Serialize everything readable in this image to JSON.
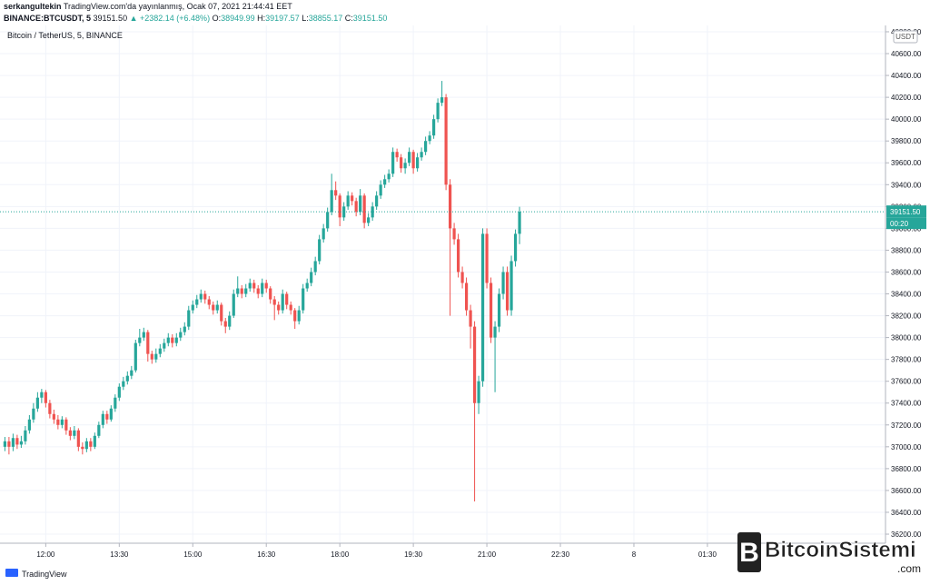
{
  "header": {
    "author": "serkangultekin",
    "published": "TradingView.com'da yayınlanmış, Ocak 07, 2021 21:44:41 EET",
    "symbol": "BINANCE:BTCUSDT, 5",
    "last": "39151.50",
    "change": "▲ +2382.14 (+6.48%)",
    "ohlc": [
      {
        "label": "O:",
        "value": "38949.99"
      },
      {
        "label": "H:",
        "value": "39197.57"
      },
      {
        "label": "L:",
        "value": "38855.17"
      },
      {
        "label": "C:",
        "value": "39151.50"
      }
    ]
  },
  "branding": {
    "logo": "TradingView",
    "watermark": "BitcoinSistemi",
    "watermark_suffix": ".com"
  },
  "chart_data": {
    "type": "candlestick",
    "legend_title": "Bitcoin / TetherUS, 5, BINANCE",
    "axis_unit": "USDT",
    "up_color": "#26a69a",
    "down_color": "#ef5350",
    "grid": true,
    "last_price": {
      "value": 39151.5,
      "label": "39151.50"
    },
    "countdown": "00:20",
    "xlim": [
      664,
      1748
    ],
    "xticks": [
      {
        "value": 720,
        "label": "12:00"
      },
      {
        "value": 810,
        "label": "13:30"
      },
      {
        "value": 900,
        "label": "15:00"
      },
      {
        "value": 990,
        "label": "16:30"
      },
      {
        "value": 1080,
        "label": "18:00"
      },
      {
        "value": 1170,
        "label": "19:30"
      },
      {
        "value": 1260,
        "label": "21:00"
      },
      {
        "value": 1350,
        "label": "22:30"
      },
      {
        "value": 1440,
        "label": "8"
      },
      {
        "value": 1530,
        "label": "01:30"
      }
    ],
    "ylim": [
      36117,
      40858
    ],
    "yticks": [
      {
        "value": 36200,
        "label": "36200.00"
      },
      {
        "value": 36400,
        "label": "36400.00"
      },
      {
        "value": 36600,
        "label": "36600.00"
      },
      {
        "value": 36800,
        "label": "36800.00"
      },
      {
        "value": 37000,
        "label": "37000.00"
      },
      {
        "value": 37200,
        "label": "37200.00"
      },
      {
        "value": 37400,
        "label": "37400.00"
      },
      {
        "value": 37600,
        "label": "37600.00"
      },
      {
        "value": 37800,
        "label": "37800.00"
      },
      {
        "value": 38000,
        "label": "38000.00"
      },
      {
        "value": 38200,
        "label": "38200.00"
      },
      {
        "value": 38400,
        "label": "38400.00"
      },
      {
        "value": 38600,
        "label": "38600.00"
      },
      {
        "value": 38800,
        "label": "38800.00"
      },
      {
        "value": 39000,
        "label": "39000.00"
      },
      {
        "value": 39200,
        "label": "39200.00"
      },
      {
        "value": 39400,
        "label": "39400.00"
      },
      {
        "value": 39600,
        "label": "39600.00"
      },
      {
        "value": 39800,
        "label": "39800.00"
      },
      {
        "value": 40000,
        "label": "40000.00"
      },
      {
        "value": 40200,
        "label": "40200.00"
      },
      {
        "value": 40400,
        "label": "40400.00"
      },
      {
        "value": 40600,
        "label": "40600.00"
      },
      {
        "value": 40800,
        "label": "40800.00"
      }
    ],
    "x": [
      "11:10",
      "11:15",
      "11:20",
      "11:25",
      "11:30",
      "11:35",
      "11:40",
      "11:45",
      "11:50",
      "11:55",
      "12:00",
      "12:05",
      "12:10",
      "12:15",
      "12:20",
      "12:25",
      "12:30",
      "12:35",
      "12:40",
      "12:45",
      "12:50",
      "12:55",
      "13:00",
      "13:05",
      "13:10",
      "13:15",
      "13:20",
      "13:25",
      "13:30",
      "13:35",
      "13:40",
      "13:45",
      "13:50",
      "13:55",
      "14:00",
      "14:05",
      "14:10",
      "14:15",
      "14:20",
      "14:25",
      "14:30",
      "14:35",
      "14:40",
      "14:45",
      "14:50",
      "14:55",
      "15:00",
      "15:05",
      "15:10",
      "15:15",
      "15:20",
      "15:25",
      "15:30",
      "15:35",
      "15:40",
      "15:45",
      "15:50",
      "15:55",
      "16:00",
      "16:05",
      "16:10",
      "16:15",
      "16:20",
      "16:25",
      "16:30",
      "16:35",
      "16:40",
      "16:45",
      "16:50",
      "16:55",
      "17:00",
      "17:05",
      "17:10",
      "17:15",
      "17:20",
      "17:25",
      "17:30",
      "17:35",
      "17:40",
      "17:45",
      "17:50",
      "17:55",
      "18:00",
      "18:05",
      "18:10",
      "18:15",
      "18:20",
      "18:25",
      "18:30",
      "18:35",
      "18:40",
      "18:45",
      "18:50",
      "18:55",
      "19:00",
      "19:05",
      "19:10",
      "19:15",
      "19:20",
      "19:25",
      "19:30",
      "19:35",
      "19:40",
      "19:45",
      "19:50",
      "19:55",
      "20:00",
      "20:05",
      "20:10",
      "20:15",
      "20:20",
      "20:25",
      "20:30",
      "20:35",
      "20:40",
      "20:45",
      "20:50",
      "20:55",
      "21:00",
      "21:05",
      "21:10",
      "21:15",
      "21:20",
      "21:25",
      "21:30",
      "21:35",
      "21:40"
    ],
    "open": [
      37000,
      37050,
      37000,
      37080,
      37020,
      37050,
      37150,
      37250,
      37350,
      37450,
      37500,
      37400,
      37300,
      37250,
      37200,
      37250,
      37150,
      37100,
      37150,
      37000,
      36980,
      37050,
      37000,
      37100,
      37200,
      37300,
      37250,
      37350,
      37450,
      37550,
      37600,
      37650,
      37700,
      37950,
      38000,
      38050,
      37850,
      37800,
      37850,
      37900,
      37950,
      38000,
      37950,
      38000,
      38050,
      38100,
      38250,
      38300,
      38350,
      38400,
      38350,
      38300,
      38250,
      38300,
      38150,
      38100,
      38200,
      38400,
      38450,
      38400,
      38450,
      38500,
      38450,
      38400,
      38500,
      38450,
      38350,
      38300,
      38250,
      38400,
      38300,
      38250,
      38150,
      38250,
      38450,
      38500,
      38600,
      38700,
      38900,
      39000,
      39150,
      39350,
      39300,
      39100,
      39200,
      39300,
      39250,
      39150,
      39300,
      39050,
      39100,
      39200,
      39300,
      39400,
      39450,
      39500,
      39700,
      39650,
      39550,
      39600,
      39700,
      39550,
      39650,
      39700,
      39800,
      39850,
      40000,
      40150,
      40200,
      39400,
      39000,
      38900,
      38600,
      38500,
      38250,
      38100,
      37400,
      37600,
      38950,
      38500,
      38000,
      38100,
      38400,
      38600,
      38250,
      38700,
      38949.99
    ],
    "high": [
      37090,
      37090,
      37120,
      37110,
      37100,
      37190,
      37290,
      37400,
      37500,
      37530,
      37520,
      37430,
      37340,
      37290,
      37280,
      37270,
      37180,
      37190,
      37170,
      37040,
      37080,
      37080,
      37130,
      37230,
      37330,
      37330,
      37380,
      37480,
      37580,
      37640,
      37690,
      37740,
      37980,
      38080,
      38090,
      38070,
      37880,
      37900,
      37940,
      37990,
      38040,
      38030,
      38040,
      38090,
      38140,
      38290,
      38340,
      38390,
      38440,
      38430,
      38380,
      38330,
      38340,
      38320,
      38180,
      38240,
      38440,
      38560,
      38480,
      38490,
      38540,
      38530,
      38480,
      38540,
      38530,
      38470,
      38380,
      38330,
      38440,
      38420,
      38330,
      38270,
      38290,
      38490,
      38540,
      38640,
      38740,
      38940,
      39040,
      39190,
      39500,
      39430,
      39320,
      39240,
      39340,
      39330,
      39280,
      39360,
      39320,
      39140,
      39240,
      39340,
      39440,
      39490,
      39540,
      39740,
      39730,
      39680,
      39640,
      39740,
      39720,
      39690,
      39740,
      39840,
      39890,
      40040,
      40190,
      40350,
      40230,
      39450,
      39050,
      38950,
      38650,
      38550,
      38300,
      38150,
      37650,
      39000,
      39000,
      38550,
      38150,
      38450,
      38650,
      38650,
      38750,
      38990,
      39197.57
    ],
    "low": [
      36960,
      36930,
      36960,
      36980,
      36990,
      37020,
      37120,
      37220,
      37320,
      37400,
      37360,
      37260,
      37210,
      37160,
      37170,
      37110,
      37060,
      37070,
      36960,
      36930,
      36950,
      36960,
      36980,
      37080,
      37170,
      37210,
      37230,
      37320,
      37420,
      37520,
      37570,
      37620,
      37680,
      37920,
      37970,
      37780,
      37760,
      37770,
      37820,
      37870,
      37920,
      37910,
      37920,
      37970,
      38020,
      38070,
      38220,
      38270,
      38320,
      38310,
      38260,
      38210,
      38220,
      38110,
      38040,
      38070,
      38180,
      38370,
      38360,
      38370,
      38420,
      38410,
      38360,
      38370,
      38410,
      38310,
      38160,
      38210,
      38220,
      38260,
      38210,
      38080,
      38120,
      38220,
      38420,
      38470,
      38570,
      38670,
      38870,
      38970,
      39120,
      39260,
      39020,
      39070,
      39170,
      39210,
      39110,
      39120,
      39000,
      39020,
      39070,
      39170,
      39270,
      39370,
      39420,
      39470,
      39610,
      39510,
      39500,
      39570,
      39500,
      39520,
      39620,
      39670,
      39770,
      39820,
      39970,
      40120,
      39350,
      38200,
      38850,
      38550,
      38450,
      38200,
      37900,
      36500,
      37300,
      37550,
      38450,
      37950,
      37500,
      38050,
      38350,
      38200,
      38200,
      38650,
      38855.17
    ],
    "close": [
      37050,
      37000,
      37080,
      37020,
      37050,
      37150,
      37250,
      37350,
      37450,
      37500,
      37400,
      37300,
      37250,
      37200,
      37250,
      37150,
      37100,
      37150,
      37000,
      36980,
      37050,
      37000,
      37100,
      37200,
      37300,
      37250,
      37350,
      37450,
      37550,
      37600,
      37650,
      37700,
      37950,
      38000,
      38050,
      37850,
      37800,
      37850,
      37900,
      37950,
      38000,
      37950,
      38000,
      38050,
      38100,
      38250,
      38300,
      38350,
      38400,
      38350,
      38300,
      38250,
      38300,
      38150,
      38100,
      38200,
      38400,
      38450,
      38400,
      38450,
      38500,
      38450,
      38400,
      38500,
      38450,
      38350,
      38300,
      38250,
      38400,
      38300,
      38250,
      38150,
      38250,
      38450,
      38500,
      38600,
      38700,
      38900,
      39000,
      39150,
      39350,
      39300,
      39100,
      39200,
      39300,
      39250,
      39150,
      39300,
      39050,
      39100,
      39200,
      39300,
      39400,
      39450,
      39500,
      39700,
      39650,
      39550,
      39600,
      39700,
      39550,
      39650,
      39700,
      39800,
      39850,
      40000,
      40150,
      40200,
      39400,
      39000,
      38900,
      38600,
      38500,
      38250,
      38100,
      37400,
      37600,
      38950,
      38500,
      38000,
      38100,
      38400,
      38600,
      38250,
      38700,
      38949.99,
      39151.5
    ]
  }
}
